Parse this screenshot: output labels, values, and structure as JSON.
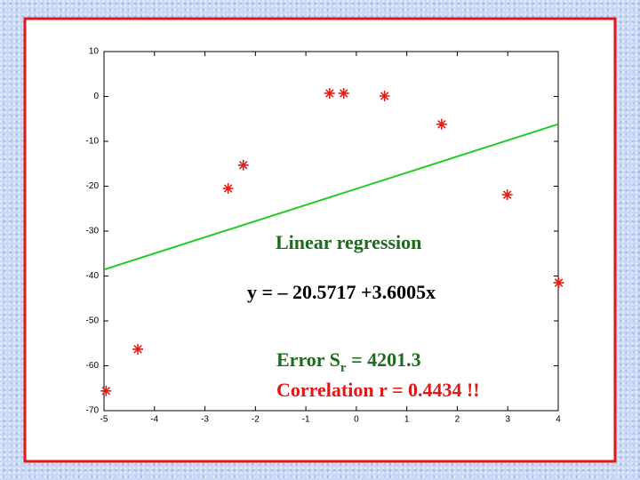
{
  "chart_data": {
    "type": "scatter",
    "x": [
      -4.96,
      -4.33,
      -2.54,
      -2.24,
      -0.53,
      -0.25,
      0.56,
      1.69,
      2.99,
      4.01
    ],
    "values": [
      -65.6,
      -56.3,
      -20.5,
      -15.3,
      0.7,
      0.7,
      0.1,
      -6.2,
      -21.9,
      -41.5
    ],
    "color": "#e0201a",
    "fit_line": {
      "x": [
        -5,
        4
      ],
      "values": [
        -38.574,
        -6.169
      ],
      "color": "#22cc22"
    },
    "xlim": [
      -5,
      4
    ],
    "xticks": [
      -5,
      -4,
      -3,
      -2,
      -1,
      0,
      1,
      2,
      3,
      4
    ],
    "ylim": [
      -70,
      10
    ],
    "yticks": [
      -70,
      -60,
      -50,
      -40,
      -30,
      -20,
      -10,
      0,
      10
    ],
    "annotations": {
      "title": "Linear regression",
      "equation": "y = – 20.5717 +3.6005x",
      "error": {
        "text": "Error S",
        "sub": "r",
        "rest": " = 4201.3"
      },
      "correlation": "Correlation r = 0.4434 !!"
    }
  }
}
